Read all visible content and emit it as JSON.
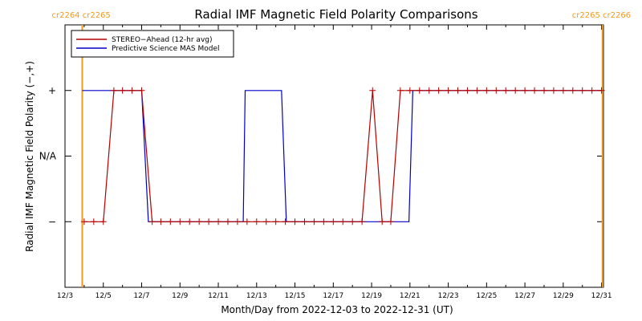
{
  "chart_data": {
    "type": "line",
    "title": "Radial IMF Magnetic Field Polarity Comparisons",
    "xlabel": "Month/Day from 2022-12-03 to 2022-12-31 (UT)",
    "ylabel": "Radial IMF Magnetic Field Polarity (−,+)",
    "x_unit": "day of December 2022",
    "xlim": [
      3,
      31.1
    ],
    "ylim": [
      -2,
      2
    ],
    "x_tick_labels": [
      "12/3",
      "12/5",
      "12/7",
      "12/9",
      "12/11",
      "12/13",
      "12/15",
      "12/17",
      "12/19",
      "12/21",
      "12/23",
      "12/25",
      "12/27",
      "12/29",
      "12/31"
    ],
    "y_ticks": [
      {
        "value": 1,
        "label": "+"
      },
      {
        "value": 0,
        "label": "N/A"
      },
      {
        "value": -1,
        "label": "−"
      }
    ],
    "legend_position": "top-left",
    "series": [
      {
        "name": "STEREO−Ahead (12-hr avg)",
        "color": "#b40000",
        "marker": "+",
        "points": [
          [
            4.0,
            -1
          ],
          [
            4.5,
            -1
          ],
          [
            5.0,
            -1
          ],
          [
            5.55,
            1
          ],
          [
            6.0,
            1
          ],
          [
            6.5,
            1
          ],
          [
            7.0,
            1
          ],
          [
            7.55,
            -1
          ],
          [
            8.0,
            -1
          ],
          [
            8.5,
            -1
          ],
          [
            9.0,
            -1
          ],
          [
            9.5,
            -1
          ],
          [
            10.0,
            -1
          ],
          [
            10.5,
            -1
          ],
          [
            11.0,
            -1
          ],
          [
            11.5,
            -1
          ],
          [
            12.0,
            -1
          ],
          [
            12.5,
            -1
          ],
          [
            13.0,
            -1
          ],
          [
            13.5,
            -1
          ],
          [
            14.0,
            -1
          ],
          [
            14.5,
            -1
          ],
          [
            15.0,
            -1
          ],
          [
            15.5,
            -1
          ],
          [
            16.0,
            -1
          ],
          [
            16.5,
            -1
          ],
          [
            17.0,
            -1
          ],
          [
            17.5,
            -1
          ],
          [
            18.0,
            -1
          ],
          [
            18.5,
            -1
          ],
          [
            19.05,
            1
          ],
          [
            19.55,
            -1
          ],
          [
            20.0,
            -1
          ],
          [
            20.5,
            1
          ],
          [
            21.0,
            1
          ],
          [
            21.5,
            1
          ],
          [
            22.0,
            1
          ],
          [
            22.5,
            1
          ],
          [
            23.0,
            1
          ],
          [
            23.5,
            1
          ],
          [
            24.0,
            1
          ],
          [
            24.5,
            1
          ],
          [
            25.0,
            1
          ],
          [
            25.5,
            1
          ],
          [
            26.0,
            1
          ],
          [
            26.5,
            1
          ],
          [
            27.0,
            1
          ],
          [
            27.5,
            1
          ],
          [
            28.0,
            1
          ],
          [
            28.5,
            1
          ],
          [
            29.0,
            1
          ],
          [
            29.5,
            1
          ],
          [
            30.0,
            1
          ],
          [
            30.5,
            1
          ],
          [
            31.0,
            1
          ]
        ]
      },
      {
        "name": "Predictive Science MAS Model",
        "color": "#0000cc",
        "marker": "none",
        "points": [
          [
            3.9,
            1
          ],
          [
            7.0,
            1
          ],
          [
            7.35,
            -1
          ],
          [
            12.3,
            -1
          ],
          [
            12.4,
            1
          ],
          [
            14.3,
            1
          ],
          [
            14.55,
            -1
          ],
          [
            20.95,
            -1
          ],
          [
            21.15,
            1
          ],
          [
            31.0,
            1
          ]
        ]
      }
    ],
    "carrington_rotations": [
      {
        "x": 3.9,
        "labels": [
          "cr2264",
          "cr2265"
        ]
      },
      {
        "x": 31.05,
        "labels": [
          "cr2265",
          "cr2266"
        ]
      }
    ],
    "cr_line_color": "#f29a1f"
  }
}
